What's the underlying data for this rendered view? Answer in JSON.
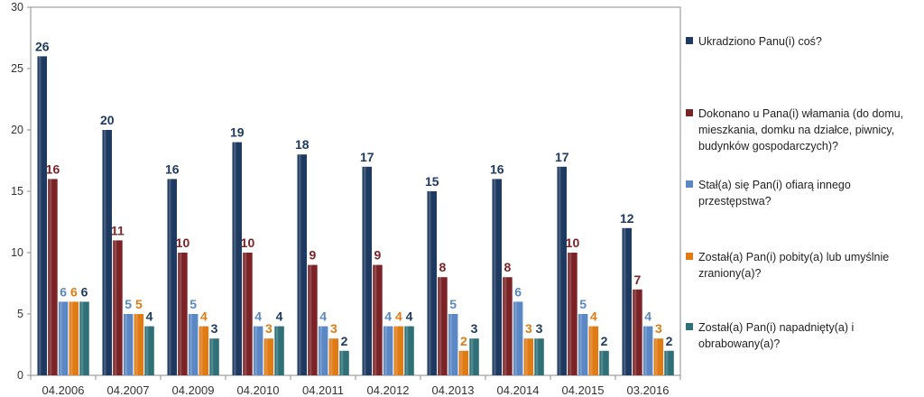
{
  "chart_data": {
    "type": "bar",
    "categories": [
      "04.2006",
      "04.2007",
      "04.2009",
      "04.2010",
      "04.2011",
      "04.2012",
      "04.2013",
      "04.2014",
      "04.2015",
      "03.2016"
    ],
    "ylim": [
      0,
      30
    ],
    "yticks": [
      0,
      5,
      10,
      15,
      20,
      25,
      30
    ],
    "grid": false,
    "legend_position": "right",
    "series": [
      {
        "name": "Ukradziono Panu(i) coś?",
        "color": "#1f3a60",
        "label_color": "#1f3a60",
        "values": [
          26,
          20,
          16,
          19,
          18,
          17,
          15,
          16,
          17,
          12
        ]
      },
      {
        "name": "Dokonano u Pana(i) włamania (do domu, mieszkania, domku na działce, piwnicy, budynków gospodarczych)?",
        "color": "#7b2428",
        "label_color": "#7b2428",
        "values": [
          16,
          11,
          10,
          10,
          9,
          9,
          8,
          8,
          10,
          7
        ]
      },
      {
        "name": "Stał(a) się Pan(i) ofiarą innego przestępstwa?",
        "color": "#5b87c5",
        "label_color": "#5b87c5",
        "values": [
          6,
          5,
          5,
          4,
          4,
          4,
          5,
          6,
          5,
          4
        ]
      },
      {
        "name": "Został(a) Pan(i) pobity(a) lub umyślnie zraniony(a)?",
        "color": "#e07b14",
        "label_color": "#e07b14",
        "values": [
          6,
          5,
          4,
          3,
          3,
          4,
          2,
          3,
          4,
          3
        ]
      },
      {
        "name": "Został(a) Pan(i) napadnięty(a) i obrabowany(a)?",
        "color": "#2e6f78",
        "label_color": "#1f3a60",
        "values": [
          6,
          4,
          3,
          4,
          2,
          4,
          3,
          3,
          2,
          2
        ]
      }
    ]
  }
}
